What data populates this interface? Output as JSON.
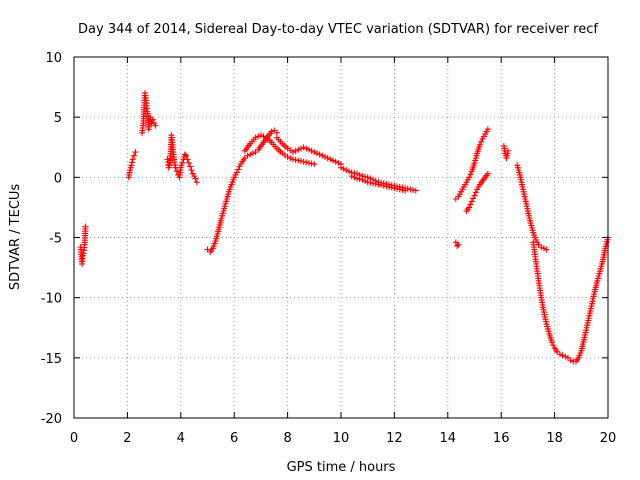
{
  "chart_data": {
    "type": "scatter",
    "title": "Day 344 of 2014, Sidereal Day-to-day VTEC variation (SDTVAR) for receiver recf",
    "xlabel": "GPS time / hours",
    "ylabel": "SDTVAR / TECUs",
    "xlim": [
      0,
      20
    ],
    "ylim": [
      -20,
      10
    ],
    "xticks": [
      0,
      2,
      4,
      6,
      8,
      10,
      12,
      14,
      16,
      18,
      20
    ],
    "yticks": [
      -20,
      -15,
      -10,
      -5,
      0,
      5,
      10
    ],
    "xtick_labels": [
      "0",
      "2",
      "4",
      "6",
      "8",
      "10",
      "12",
      "14",
      "16",
      "18",
      "20"
    ],
    "ytick_labels": [
      "-20",
      "-15",
      "-10",
      "-5",
      "0",
      "5",
      "10"
    ],
    "grid": true,
    "marker": "+",
    "marker_color": "#ff0000",
    "series": [
      {
        "name": "seg1",
        "x": [
          0.25,
          0.3,
          0.33,
          0.36,
          0.4,
          0.43
        ],
        "y": [
          -5.8,
          -7.2,
          -6.5,
          -6.3,
          -5.6,
          -4.1
        ]
      },
      {
        "name": "seg2",
        "x": [
          2.05,
          2.1,
          2.15,
          2.2,
          2.25,
          2.3
        ],
        "y": [
          0.0,
          0.6,
          1.0,
          1.5,
          1.8,
          2.1
        ]
      },
      {
        "name": "seg3",
        "x": [
          2.55,
          2.6,
          2.63,
          2.66,
          2.7,
          2.75,
          2.8,
          2.85,
          2.9,
          2.95,
          3.0,
          3.05
        ],
        "y": [
          3.7,
          4.5,
          6.0,
          7.0,
          6.4,
          5.5,
          4.0,
          5.0,
          4.5,
          4.8,
          4.5,
          4.3
        ]
      },
      {
        "name": "seg4",
        "x": [
          3.5,
          3.55,
          3.6,
          3.65,
          3.7,
          3.75,
          3.8,
          3.85,
          3.9
        ],
        "y": [
          1.5,
          0.8,
          1.2,
          3.5,
          2.5,
          1.5,
          0.8,
          0.5,
          0.2
        ]
      },
      {
        "name": "seg5",
        "x": [
          3.95,
          4.0,
          4.05,
          4.1,
          4.15,
          4.2,
          4.25,
          4.3,
          4.35,
          4.4,
          4.45,
          4.5,
          4.55,
          4.6
        ],
        "y": [
          0.0,
          0.8,
          1.2,
          1.5,
          1.9,
          1.8,
          1.5,
          1.2,
          0.9,
          0.6,
          0.3,
          0.1,
          -0.1,
          -0.4
        ]
      },
      {
        "name": "seg6",
        "x": [
          5.0,
          5.1,
          5.2,
          5.3,
          5.4,
          5.5,
          5.6,
          5.7,
          5.8,
          5.9,
          6.0,
          6.1,
          6.2,
          6.3,
          6.4,
          6.5,
          6.6,
          6.7,
          6.8,
          6.9,
          7.0,
          7.1,
          7.2,
          7.3,
          7.4,
          7.5,
          7.6
        ],
        "y": [
          -6.0,
          -6.2,
          -5.9,
          -5.3,
          -4.5,
          -3.6,
          -2.8,
          -2.0,
          -1.2,
          -0.6,
          0.0,
          0.4,
          0.9,
          1.3,
          1.6,
          1.8,
          1.9,
          2.0,
          2.1,
          2.3,
          2.6,
          2.9,
          3.2,
          3.5,
          3.8,
          3.9,
          3.7
        ]
      },
      {
        "name": "seg7",
        "x": [
          6.4,
          6.6,
          6.8,
          7.0,
          7.2,
          7.4,
          7.6,
          7.8,
          8.0,
          8.2,
          8.4,
          8.6,
          8.8,
          9.0
        ],
        "y": [
          2.2,
          2.8,
          3.3,
          3.5,
          3.3,
          2.9,
          2.4,
          2.0,
          1.7,
          1.5,
          1.4,
          1.3,
          1.2,
          1.1
        ]
      },
      {
        "name": "seg8",
        "x": [
          7.6,
          7.8,
          8.0,
          8.2,
          8.4,
          8.6,
          8.8,
          9.0,
          9.2,
          9.4,
          9.6,
          9.8,
          10.0
        ],
        "y": [
          3.3,
          2.8,
          2.4,
          2.1,
          2.3,
          2.5,
          2.3,
          2.1,
          1.9,
          1.7,
          1.5,
          1.3,
          1.1
        ]
      },
      {
        "name": "seg9",
        "x": [
          10.0,
          10.2,
          10.4,
          10.6,
          10.8,
          11.0,
          11.2,
          11.4,
          11.6,
          11.8,
          12.0,
          12.2,
          12.4,
          12.6,
          12.8
        ],
        "y": [
          0.8,
          0.6,
          0.4,
          0.3,
          0.1,
          0.0,
          -0.2,
          -0.4,
          -0.5,
          -0.6,
          -0.7,
          -0.8,
          -0.9,
          -1.0,
          -1.1
        ]
      },
      {
        "name": "seg10",
        "x": [
          10.4,
          10.6,
          10.8,
          11.0,
          11.2,
          11.4,
          11.6,
          11.8,
          12.0,
          12.2,
          12.4
        ],
        "y": [
          0.1,
          -0.1,
          -0.2,
          -0.4,
          -0.5,
          -0.6,
          -0.7,
          -0.8,
          -0.9,
          -1.0,
          -1.1
        ]
      },
      {
        "name": "seg11",
        "x": [
          14.3,
          14.35,
          14.4
        ],
        "y": [
          -5.4,
          -5.7,
          -5.6
        ]
      },
      {
        "name": "seg12",
        "x": [
          14.3,
          14.4,
          14.5,
          14.6,
          14.7,
          14.8,
          14.9,
          15.0,
          15.1,
          15.2,
          15.3,
          15.4,
          15.5
        ],
        "y": [
          -1.8,
          -1.6,
          -1.2,
          -0.8,
          -0.4,
          0.0,
          0.5,
          1.2,
          2.0,
          2.7,
          3.2,
          3.6,
          4.0
        ]
      },
      {
        "name": "seg13",
        "x": [
          14.7,
          14.8,
          14.9,
          15.0,
          15.1,
          15.2,
          15.3,
          15.4,
          15.5
        ],
        "y": [
          -2.8,
          -2.5,
          -2.0,
          -1.5,
          -1.0,
          -0.6,
          -0.3,
          0.0,
          0.3
        ]
      },
      {
        "name": "seg14",
        "x": [
          16.1,
          16.15,
          16.2,
          16.25
        ],
        "y": [
          2.6,
          2.0,
          1.6,
          2.2
        ]
      },
      {
        "name": "seg15",
        "x": [
          16.6,
          16.7,
          16.8,
          16.9,
          17.0,
          17.1,
          17.2,
          17.3,
          17.4,
          17.5,
          17.6,
          17.7
        ],
        "y": [
          1.0,
          0.2,
          -0.8,
          -1.8,
          -2.8,
          -3.8,
          -4.6,
          -5.2,
          -5.6,
          -5.8,
          -5.9,
          -6.0
        ]
      },
      {
        "name": "seg16",
        "x": [
          17.2,
          17.3,
          17.4,
          17.5,
          17.6,
          17.7,
          17.8,
          17.9,
          18.0,
          18.1,
          18.2,
          18.3,
          18.4,
          18.5,
          18.6,
          18.7,
          18.8,
          18.9,
          19.0,
          19.1,
          19.2,
          19.3,
          19.4,
          19.5,
          19.6,
          19.7,
          19.8,
          19.9,
          20.0
        ],
        "y": [
          -5.4,
          -7.0,
          -8.6,
          -10.0,
          -11.2,
          -12.2,
          -13.0,
          -13.7,
          -14.2,
          -14.5,
          -14.7,
          -14.8,
          -14.9,
          -15.0,
          -15.2,
          -15.3,
          -15.3,
          -15.0,
          -14.4,
          -13.5,
          -12.5,
          -11.5,
          -10.5,
          -9.5,
          -8.6,
          -7.8,
          -7.0,
          -5.9,
          -5.0
        ]
      }
    ]
  }
}
